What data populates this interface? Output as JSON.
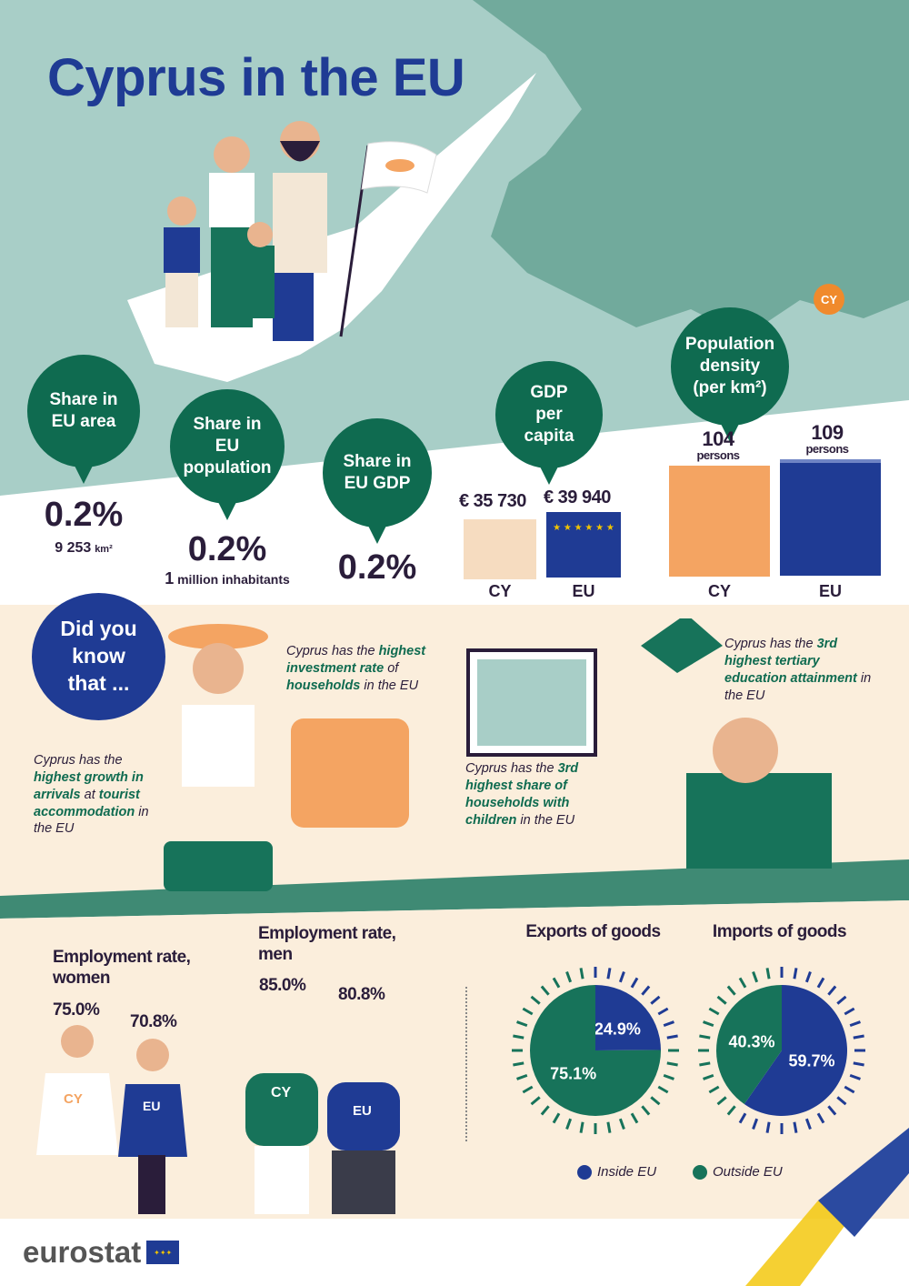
{
  "title": "Cyprus in the EU",
  "map": {
    "marker": "CY"
  },
  "colors": {
    "green": "#0f6b50",
    "blue": "#1f3b94",
    "teal_bg": "#a8cec7",
    "beige": "#fbeedc",
    "orange": "#f4a462"
  },
  "area": {
    "label": "Share in EU area",
    "value": "0.2%",
    "detail_num": "9 253",
    "detail_unit": "km²"
  },
  "population": {
    "label": "Share in EU population",
    "value": "0.2%",
    "detail_num": "1",
    "detail_unit": "million inhabitants"
  },
  "gdp": {
    "label": "Share in EU GDP",
    "value": "0.2%"
  },
  "gdp_per_capita": {
    "label": "GDP per capita",
    "cy_value": "€ 35 730",
    "eu_value": "€ 39 940",
    "cy": "CY",
    "eu": "EU"
  },
  "density": {
    "label": "Population density (per km²)",
    "cy_value": "104",
    "eu_value": "109",
    "unit": "persons",
    "cy": "CY",
    "eu": "EU"
  },
  "did_you_know": {
    "title": "Did you know that ...",
    "facts": [
      {
        "parts": [
          [
            "Cyprus has the ",
            0
          ],
          [
            "highest growth in arrivals",
            1
          ],
          [
            " at ",
            0
          ],
          [
            "tourist accommodation",
            1
          ],
          [
            " in the EU",
            0
          ]
        ]
      },
      {
        "parts": [
          [
            "Cyprus has the ",
            0
          ],
          [
            "highest investment rate",
            1
          ],
          [
            " of ",
            0
          ],
          [
            "households",
            1
          ],
          [
            " in the EU",
            0
          ]
        ]
      },
      {
        "parts": [
          [
            "Cyprus has the ",
            0
          ],
          [
            "3rd highest share of households with children",
            1
          ],
          [
            " in the EU",
            0
          ]
        ]
      },
      {
        "parts": [
          [
            "Cyprus has the ",
            0
          ],
          [
            "3rd highest tertiary education attainment",
            1
          ],
          [
            " in the EU",
            0
          ]
        ]
      }
    ]
  },
  "employment_women": {
    "label": "Employment rate, women",
    "cy_value": "75.0%",
    "eu_value": "70.8%",
    "cy": "CY",
    "eu": "EU"
  },
  "employment_men": {
    "label": "Employment rate, men",
    "cy_value": "85.0%",
    "eu_value": "80.8%",
    "cy": "CY",
    "eu": "EU"
  },
  "chart_data": [
    {
      "type": "pie",
      "title": "Exports of goods",
      "labels": [
        "Inside EU",
        "Outside EU"
      ],
      "values": [
        24.9,
        75.1
      ],
      "value_labels": [
        "24.9%",
        "75.1%"
      ],
      "colors": [
        "#1f3b94",
        "#17735a"
      ]
    },
    {
      "type": "pie",
      "title": "Imports of goods",
      "labels": [
        "Inside EU",
        "Outside EU"
      ],
      "values": [
        59.7,
        40.3
      ],
      "value_labels": [
        "59.7%",
        "40.3%"
      ],
      "colors": [
        "#1f3b94",
        "#17735a"
      ]
    }
  ],
  "legend": {
    "inside": "Inside EU",
    "outside": "Outside EU"
  },
  "footer": {
    "logo": "eurostat"
  }
}
